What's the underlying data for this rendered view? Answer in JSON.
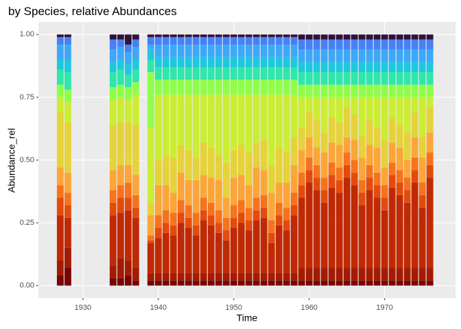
{
  "chart_data": {
    "type": "stacked-bar",
    "title": "by Species, relative Abundances",
    "x_label": "Time",
    "y_label": "Abundance_rel",
    "x": [
      1927,
      1928,
      1934,
      1935,
      1936,
      1937,
      1939,
      1940,
      1941,
      1942,
      1943,
      1944,
      1945,
      1946,
      1947,
      1948,
      1949,
      1950,
      1951,
      1952,
      1953,
      1954,
      1955,
      1956,
      1957,
      1958,
      1959,
      1960,
      1961,
      1962,
      1963,
      1964,
      1965,
      1966,
      1967,
      1968,
      1969,
      1970,
      1971,
      1972,
      1973,
      1974,
      1975,
      1976
    ],
    "xlim": [
      1924.1,
      1979.4
    ],
    "xticks": [
      1930,
      1940,
      1950,
      1960,
      1970
    ],
    "ylim": [
      -0.05,
      1.05
    ],
    "yticks": [
      {
        "value": 0,
        "label": "0.00"
      },
      {
        "value": 0.25,
        "label": "0.25"
      },
      {
        "value": 0.5,
        "label": "0.50"
      },
      {
        "value": 0.75,
        "label": "0.75"
      },
      {
        "value": 1,
        "label": "1.00"
      }
    ],
    "grid": true,
    "series": [
      {
        "color": "#7a0403",
        "values": [
          0.04,
          0.07,
          0.03,
          0.03,
          0.04,
          0.02,
          0.02,
          0.02,
          0.02,
          0.02,
          0.02,
          0.02,
          0.02,
          0.02,
          0.02,
          0.02,
          0.02,
          0.02,
          0.02,
          0.02,
          0.02,
          0.02,
          0.02,
          0.02,
          0.02,
          0.02,
          0.02,
          0.02,
          0.02,
          0.02,
          0.02,
          0.02,
          0.02,
          0.02,
          0.02,
          0.02,
          0.02,
          0.02,
          0.02,
          0.02,
          0.02,
          0.02,
          0.02,
          0.02
        ]
      },
      {
        "color": "#a31b02",
        "values": [
          0.06,
          0.08,
          0.05,
          0.08,
          0.06,
          0.05,
          0.03,
          0.03,
          0.03,
          0.03,
          0.03,
          0.03,
          0.03,
          0.03,
          0.03,
          0.03,
          0.03,
          0.03,
          0.03,
          0.03,
          0.03,
          0.03,
          0.03,
          0.03,
          0.03,
          0.03,
          0.05,
          0.05,
          0.05,
          0.05,
          0.05,
          0.05,
          0.05,
          0.05,
          0.05,
          0.05,
          0.05,
          0.05,
          0.05,
          0.05,
          0.05,
          0.05,
          0.05,
          0.05
        ]
      },
      {
        "color": "#bf2a04",
        "values": [
          0.18,
          0.12,
          0.2,
          0.18,
          0.2,
          0.2,
          0.12,
          0.14,
          0.16,
          0.15,
          0.2,
          0.18,
          0.15,
          0.21,
          0.19,
          0.16,
          0.13,
          0.18,
          0.2,
          0.17,
          0.21,
          0.22,
          0.12,
          0.19,
          0.17,
          0.23,
          0.28,
          0.34,
          0.31,
          0.26,
          0.32,
          0.3,
          0.36,
          0.33,
          0.25,
          0.31,
          0.28,
          0.23,
          0.32,
          0.29,
          0.26,
          0.34,
          0.24,
          0.36
        ]
      },
      {
        "color": "#e34b0d",
        "values": [
          0.07,
          0.05,
          0.05,
          0.06,
          0.05,
          0.04,
          0.01,
          0.04,
          0.04,
          0.04,
          0.04,
          0.04,
          0.04,
          0.04,
          0.04,
          0.04,
          0.04,
          0.04,
          0.04,
          0.04,
          0.04,
          0.04,
          0.04,
          0.04,
          0.04,
          0.04,
          0.05,
          0.05,
          0.05,
          0.05,
          0.05,
          0.05,
          0.05,
          0.05,
          0.05,
          0.05,
          0.05,
          0.05,
          0.05,
          0.05,
          0.05,
          0.05,
          0.05,
          0.05
        ]
      },
      {
        "color": "#f6731e",
        "values": [
          0.05,
          0.05,
          0.05,
          0.05,
          0.06,
          0.05,
          0.02,
          0.05,
          0.05,
          0.05,
          0.05,
          0.05,
          0.05,
          0.05,
          0.05,
          0.05,
          0.05,
          0.05,
          0.05,
          0.05,
          0.05,
          0.05,
          0.05,
          0.05,
          0.05,
          0.05,
          0.05,
          0.05,
          0.05,
          0.05,
          0.05,
          0.05,
          0.05,
          0.05,
          0.05,
          0.05,
          0.05,
          0.05,
          0.05,
          0.05,
          0.05,
          0.05,
          0.05,
          0.05
        ]
      },
      {
        "color": "#fca63a",
        "values": [
          0.07,
          0.08,
          0.08,
          0.08,
          0.07,
          0.08,
          0.08,
          0.12,
          0.1,
          0.08,
          0.11,
          0.1,
          0.13,
          0.09,
          0.1,
          0.12,
          0.08,
          0.11,
          0.1,
          0.09,
          0.12,
          0.1,
          0.11,
          0.08,
          0.1,
          0.11,
          0.09,
          0.08,
          0.07,
          0.1,
          0.08,
          0.09,
          0.06,
          0.08,
          0.09,
          0.08,
          0.1,
          0.07,
          0.08,
          0.09,
          0.07,
          0.08,
          0.1,
          0.08
        ]
      },
      {
        "color": "#e6d23a",
        "values": [
          0.22,
          0.2,
          0.18,
          0.17,
          0.17,
          0.2,
          0.05,
          0.1,
          0.12,
          0.14,
          0.11,
          0.12,
          0.09,
          0.13,
          0.12,
          0.1,
          0.14,
          0.11,
          0.12,
          0.13,
          0.1,
          0.12,
          0.11,
          0.14,
          0.12,
          0.11,
          0.09,
          0.1,
          0.11,
          0.08,
          0.1,
          0.09,
          0.12,
          0.1,
          0.09,
          0.1,
          0.08,
          0.11,
          0.1,
          0.09,
          0.11,
          0.1,
          0.08,
          0.1
        ]
      },
      {
        "color": "#cbed34",
        "values": [
          0.06,
          0.08,
          0.1,
          0.1,
          0.09,
          0.12,
          0.3,
          0.26,
          0.24,
          0.25,
          0.2,
          0.22,
          0.25,
          0.19,
          0.21,
          0.24,
          0.27,
          0.22,
          0.2,
          0.23,
          0.19,
          0.18,
          0.28,
          0.21,
          0.23,
          0.17,
          0.12,
          0.06,
          0.09,
          0.14,
          0.08,
          0.1,
          0.04,
          0.07,
          0.15,
          0.09,
          0.12,
          0.17,
          0.08,
          0.11,
          0.14,
          0.06,
          0.16,
          0.04
        ]
      },
      {
        "color": "#8ffe48",
        "values": [
          0.05,
          0.05,
          0.05,
          0.05,
          0.05,
          0.05,
          0.22,
          0.06,
          0.06,
          0.06,
          0.06,
          0.06,
          0.06,
          0.06,
          0.06,
          0.06,
          0.06,
          0.06,
          0.06,
          0.06,
          0.06,
          0.06,
          0.06,
          0.06,
          0.06,
          0.06,
          0.05,
          0.05,
          0.05,
          0.05,
          0.05,
          0.05,
          0.05,
          0.05,
          0.05,
          0.05,
          0.05,
          0.05,
          0.05,
          0.05,
          0.05,
          0.05,
          0.05,
          0.05
        ]
      },
      {
        "color": "#2fe6ab",
        "values": [
          0.06,
          0.07,
          0.06,
          0.06,
          0.05,
          0.05,
          0.05,
          0.05,
          0.05,
          0.05,
          0.05,
          0.05,
          0.05,
          0.05,
          0.05,
          0.05,
          0.05,
          0.05,
          0.05,
          0.05,
          0.05,
          0.05,
          0.05,
          0.05,
          0.05,
          0.05,
          0.05,
          0.05,
          0.05,
          0.05,
          0.05,
          0.05,
          0.05,
          0.05,
          0.05,
          0.05,
          0.05,
          0.05,
          0.05,
          0.05,
          0.05,
          0.05,
          0.05,
          0.05
        ]
      },
      {
        "color": "#1ec8de",
        "values": [
          0.04,
          0.05,
          0.04,
          0.04,
          0.04,
          0.04,
          0.04,
          0.04,
          0.04,
          0.04,
          0.04,
          0.04,
          0.04,
          0.04,
          0.04,
          0.04,
          0.04,
          0.04,
          0.04,
          0.04,
          0.04,
          0.04,
          0.04,
          0.04,
          0.04,
          0.04,
          0.04,
          0.04,
          0.04,
          0.04,
          0.04,
          0.04,
          0.04,
          0.04,
          0.04,
          0.04,
          0.04,
          0.04,
          0.04,
          0.04,
          0.04,
          0.04,
          0.04,
          0.04
        ]
      },
      {
        "color": "#3ea8f8",
        "values": [
          0.06,
          0.06,
          0.05,
          0.05,
          0.05,
          0.05,
          0.02,
          0.05,
          0.05,
          0.05,
          0.05,
          0.05,
          0.05,
          0.05,
          0.05,
          0.05,
          0.05,
          0.05,
          0.05,
          0.05,
          0.05,
          0.05,
          0.05,
          0.05,
          0.05,
          0.05,
          0.05,
          0.05,
          0.05,
          0.05,
          0.05,
          0.05,
          0.05,
          0.05,
          0.05,
          0.05,
          0.05,
          0.05,
          0.05,
          0.05,
          0.05,
          0.05,
          0.05,
          0.05
        ]
      },
      {
        "color": "#4680f6",
        "values": [
          0.03,
          0.03,
          0.04,
          0.03,
          0.03,
          0.03,
          0.03,
          0.03,
          0.03,
          0.03,
          0.03,
          0.03,
          0.03,
          0.03,
          0.03,
          0.03,
          0.03,
          0.03,
          0.03,
          0.03,
          0.03,
          0.03,
          0.03,
          0.03,
          0.03,
          0.03,
          0.04,
          0.04,
          0.04,
          0.04,
          0.04,
          0.04,
          0.04,
          0.04,
          0.04,
          0.04,
          0.04,
          0.04,
          0.04,
          0.04,
          0.04,
          0.04,
          0.04,
          0.04
        ]
      },
      {
        "color": "#30123b",
        "values": [
          0.01,
          0.01,
          0.02,
          0.02,
          0.04,
          0.02,
          0.01,
          0.01,
          0.01,
          0.01,
          0.01,
          0.01,
          0.01,
          0.01,
          0.01,
          0.01,
          0.01,
          0.01,
          0.01,
          0.01,
          0.01,
          0.01,
          0.01,
          0.01,
          0.01,
          0.01,
          0.02,
          0.02,
          0.02,
          0.02,
          0.02,
          0.02,
          0.02,
          0.02,
          0.02,
          0.02,
          0.02,
          0.02,
          0.02,
          0.02,
          0.02,
          0.02,
          0.02,
          0.02
        ]
      }
    ]
  }
}
